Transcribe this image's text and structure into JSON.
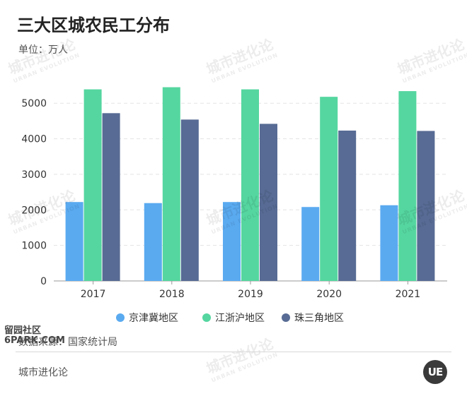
{
  "title": "三大区城农民工分布",
  "unit": "单位：万人",
  "source": "数据来源：国家统计局",
  "brand": "城市进化论",
  "logo_text": "UE",
  "watermark": {
    "cn": "城市进化论",
    "en": "URBAN EVOLUTION"
  },
  "stamp": {
    "line1": "留园社区",
    "line2": "6PARK.COM"
  },
  "colors": {
    "jingjinji": "#5aaaf0",
    "jiangzhehu": "#55d6a0",
    "zhusanjiao": "#576b94",
    "grid": "#e3e3e3",
    "axis_text": "#333333"
  },
  "chart_data": {
    "type": "bar",
    "categories": [
      "2017",
      "2018",
      "2019",
      "2020",
      "2021"
    ],
    "series": [
      {
        "name": "京津冀地区",
        "values": [
          2220,
          2190,
          2220,
          2080,
          2130
        ]
      },
      {
        "name": "江浙沪地区",
        "values": [
          5390,
          5450,
          5390,
          5180,
          5340
        ]
      },
      {
        "name": "珠三角地区",
        "values": [
          4720,
          4540,
          4420,
          4230,
          4220
        ]
      }
    ],
    "ylim": [
      0,
      5600
    ],
    "yticks": [
      0,
      1000,
      2000,
      3000,
      4000,
      5000
    ],
    "grid": true,
    "legend_position": "bottom-center"
  }
}
